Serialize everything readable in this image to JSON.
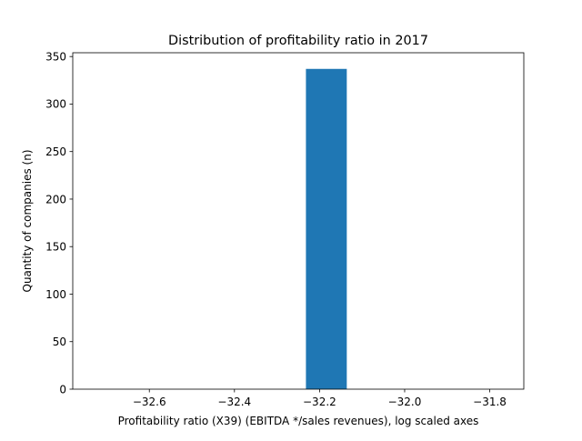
{
  "chart_data": {
    "type": "bar",
    "title": "Distribution of profitability ratio in 2017",
    "xlabel": "Profitability ratio (X39) (EBITDA */sales revenues), log scaled axes",
    "ylabel": "Quantity of companies (n)",
    "xlim": [
      -32.78,
      -31.72
    ],
    "ylim": [
      0,
      354
    ],
    "x_ticks": [
      -32.6,
      -32.4,
      -32.2,
      -32.0,
      -31.8
    ],
    "x_tick_labels": [
      "−32.6",
      "−32.4",
      "−32.2",
      "−32.0",
      "−31.8"
    ],
    "y_ticks": [
      0,
      50,
      100,
      150,
      200,
      250,
      300,
      350
    ],
    "y_tick_labels": [
      "0",
      "50",
      "100",
      "150",
      "200",
      "250",
      "300",
      "350"
    ],
    "bars": [
      {
        "x_start": -32.232,
        "x_end": -32.136,
        "value": 337
      }
    ],
    "grid": false,
    "bar_color": "#1f77b4"
  }
}
